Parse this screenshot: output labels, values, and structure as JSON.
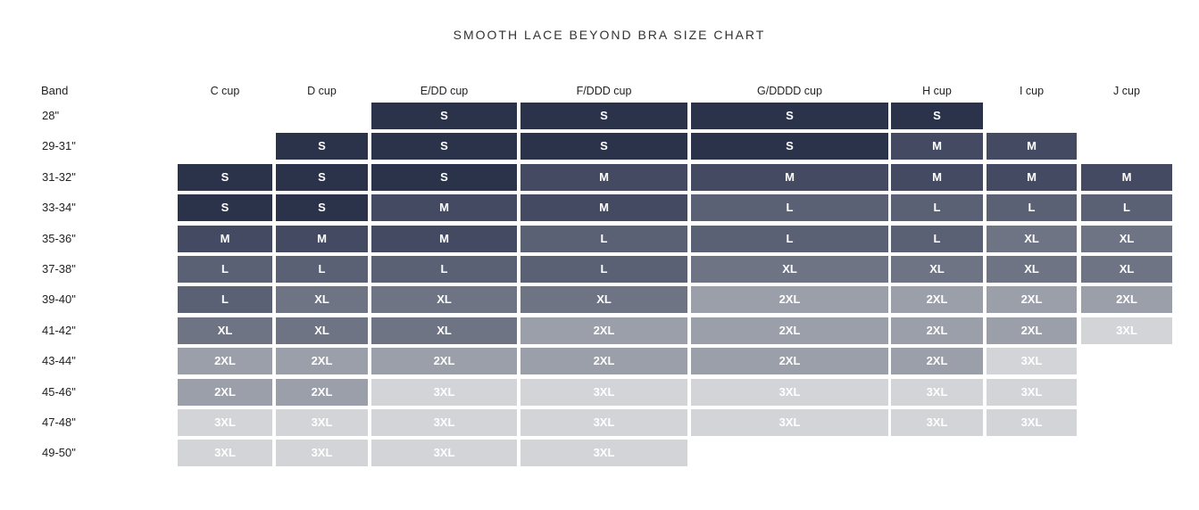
{
  "chart_data": {
    "type": "table",
    "title": "SMOOTH LACE BEYOND BRA SIZE CHART",
    "row_header": "Band",
    "columns": [
      "C cup",
      "D cup",
      "E/DD cup",
      "F/DDD cup",
      "G/DDDD cup",
      "H cup",
      "I cup",
      "J cup"
    ],
    "rows": [
      {
        "band": "28\"",
        "sizes": [
          "",
          "",
          "S",
          "S",
          "S",
          "S",
          "",
          ""
        ]
      },
      {
        "band": "29-31\"",
        "sizes": [
          "",
          "S",
          "S",
          "S",
          "S",
          "M",
          "M",
          ""
        ]
      },
      {
        "band": "31-32\"",
        "sizes": [
          "S",
          "S",
          "S",
          "M",
          "M",
          "M",
          "M",
          "M"
        ]
      },
      {
        "band": "33-34\"",
        "sizes": [
          "S",
          "S",
          "M",
          "M",
          "L",
          "L",
          "L",
          "L"
        ]
      },
      {
        "band": "35-36\"",
        "sizes": [
          "M",
          "M",
          "M",
          "L",
          "L",
          "L",
          "XL",
          "XL"
        ]
      },
      {
        "band": "37-38\"",
        "sizes": [
          "L",
          "L",
          "L",
          "L",
          "XL",
          "XL",
          "XL",
          "XL"
        ]
      },
      {
        "band": "39-40\"",
        "sizes": [
          "L",
          "XL",
          "XL",
          "XL",
          "2XL",
          "2XL",
          "2XL",
          "2XL"
        ]
      },
      {
        "band": "41-42\"",
        "sizes": [
          "XL",
          "XL",
          "XL",
          "2XL",
          "2XL",
          "2XL",
          "2XL",
          "3XL"
        ]
      },
      {
        "band": "43-44\"",
        "sizes": [
          "2XL",
          "2XL",
          "2XL",
          "2XL",
          "2XL",
          "2XL",
          "3XL",
          ""
        ]
      },
      {
        "band": "45-46\"",
        "sizes": [
          "2XL",
          "2XL",
          "3XL",
          "3XL",
          "3XL",
          "3XL",
          "3XL",
          ""
        ]
      },
      {
        "band": "47-48\"",
        "sizes": [
          "3XL",
          "3XL",
          "3XL",
          "3XL",
          "3XL",
          "3XL",
          "3XL",
          ""
        ]
      },
      {
        "band": "49-50\"",
        "sizes": [
          "3XL",
          "3XL",
          "3XL",
          "3XL",
          "",
          "",
          "",
          ""
        ]
      }
    ],
    "size_colors": {
      "S": {
        "bg": "#2b334b",
        "fg": "#ffffff"
      },
      "M": {
        "bg": "#434a61",
        "fg": "#ffffff"
      },
      "L": {
        "bg": "#5b6175",
        "fg": "#ffffff"
      },
      "XL": {
        "bg": "#6f7485",
        "fg": "#ffffff"
      },
      "2XL": {
        "bg": "#9b9fa9",
        "fg": "#ffffff"
      },
      "3XL": {
        "bg": "#d3d4d8",
        "fg": "#ffffff"
      }
    }
  }
}
